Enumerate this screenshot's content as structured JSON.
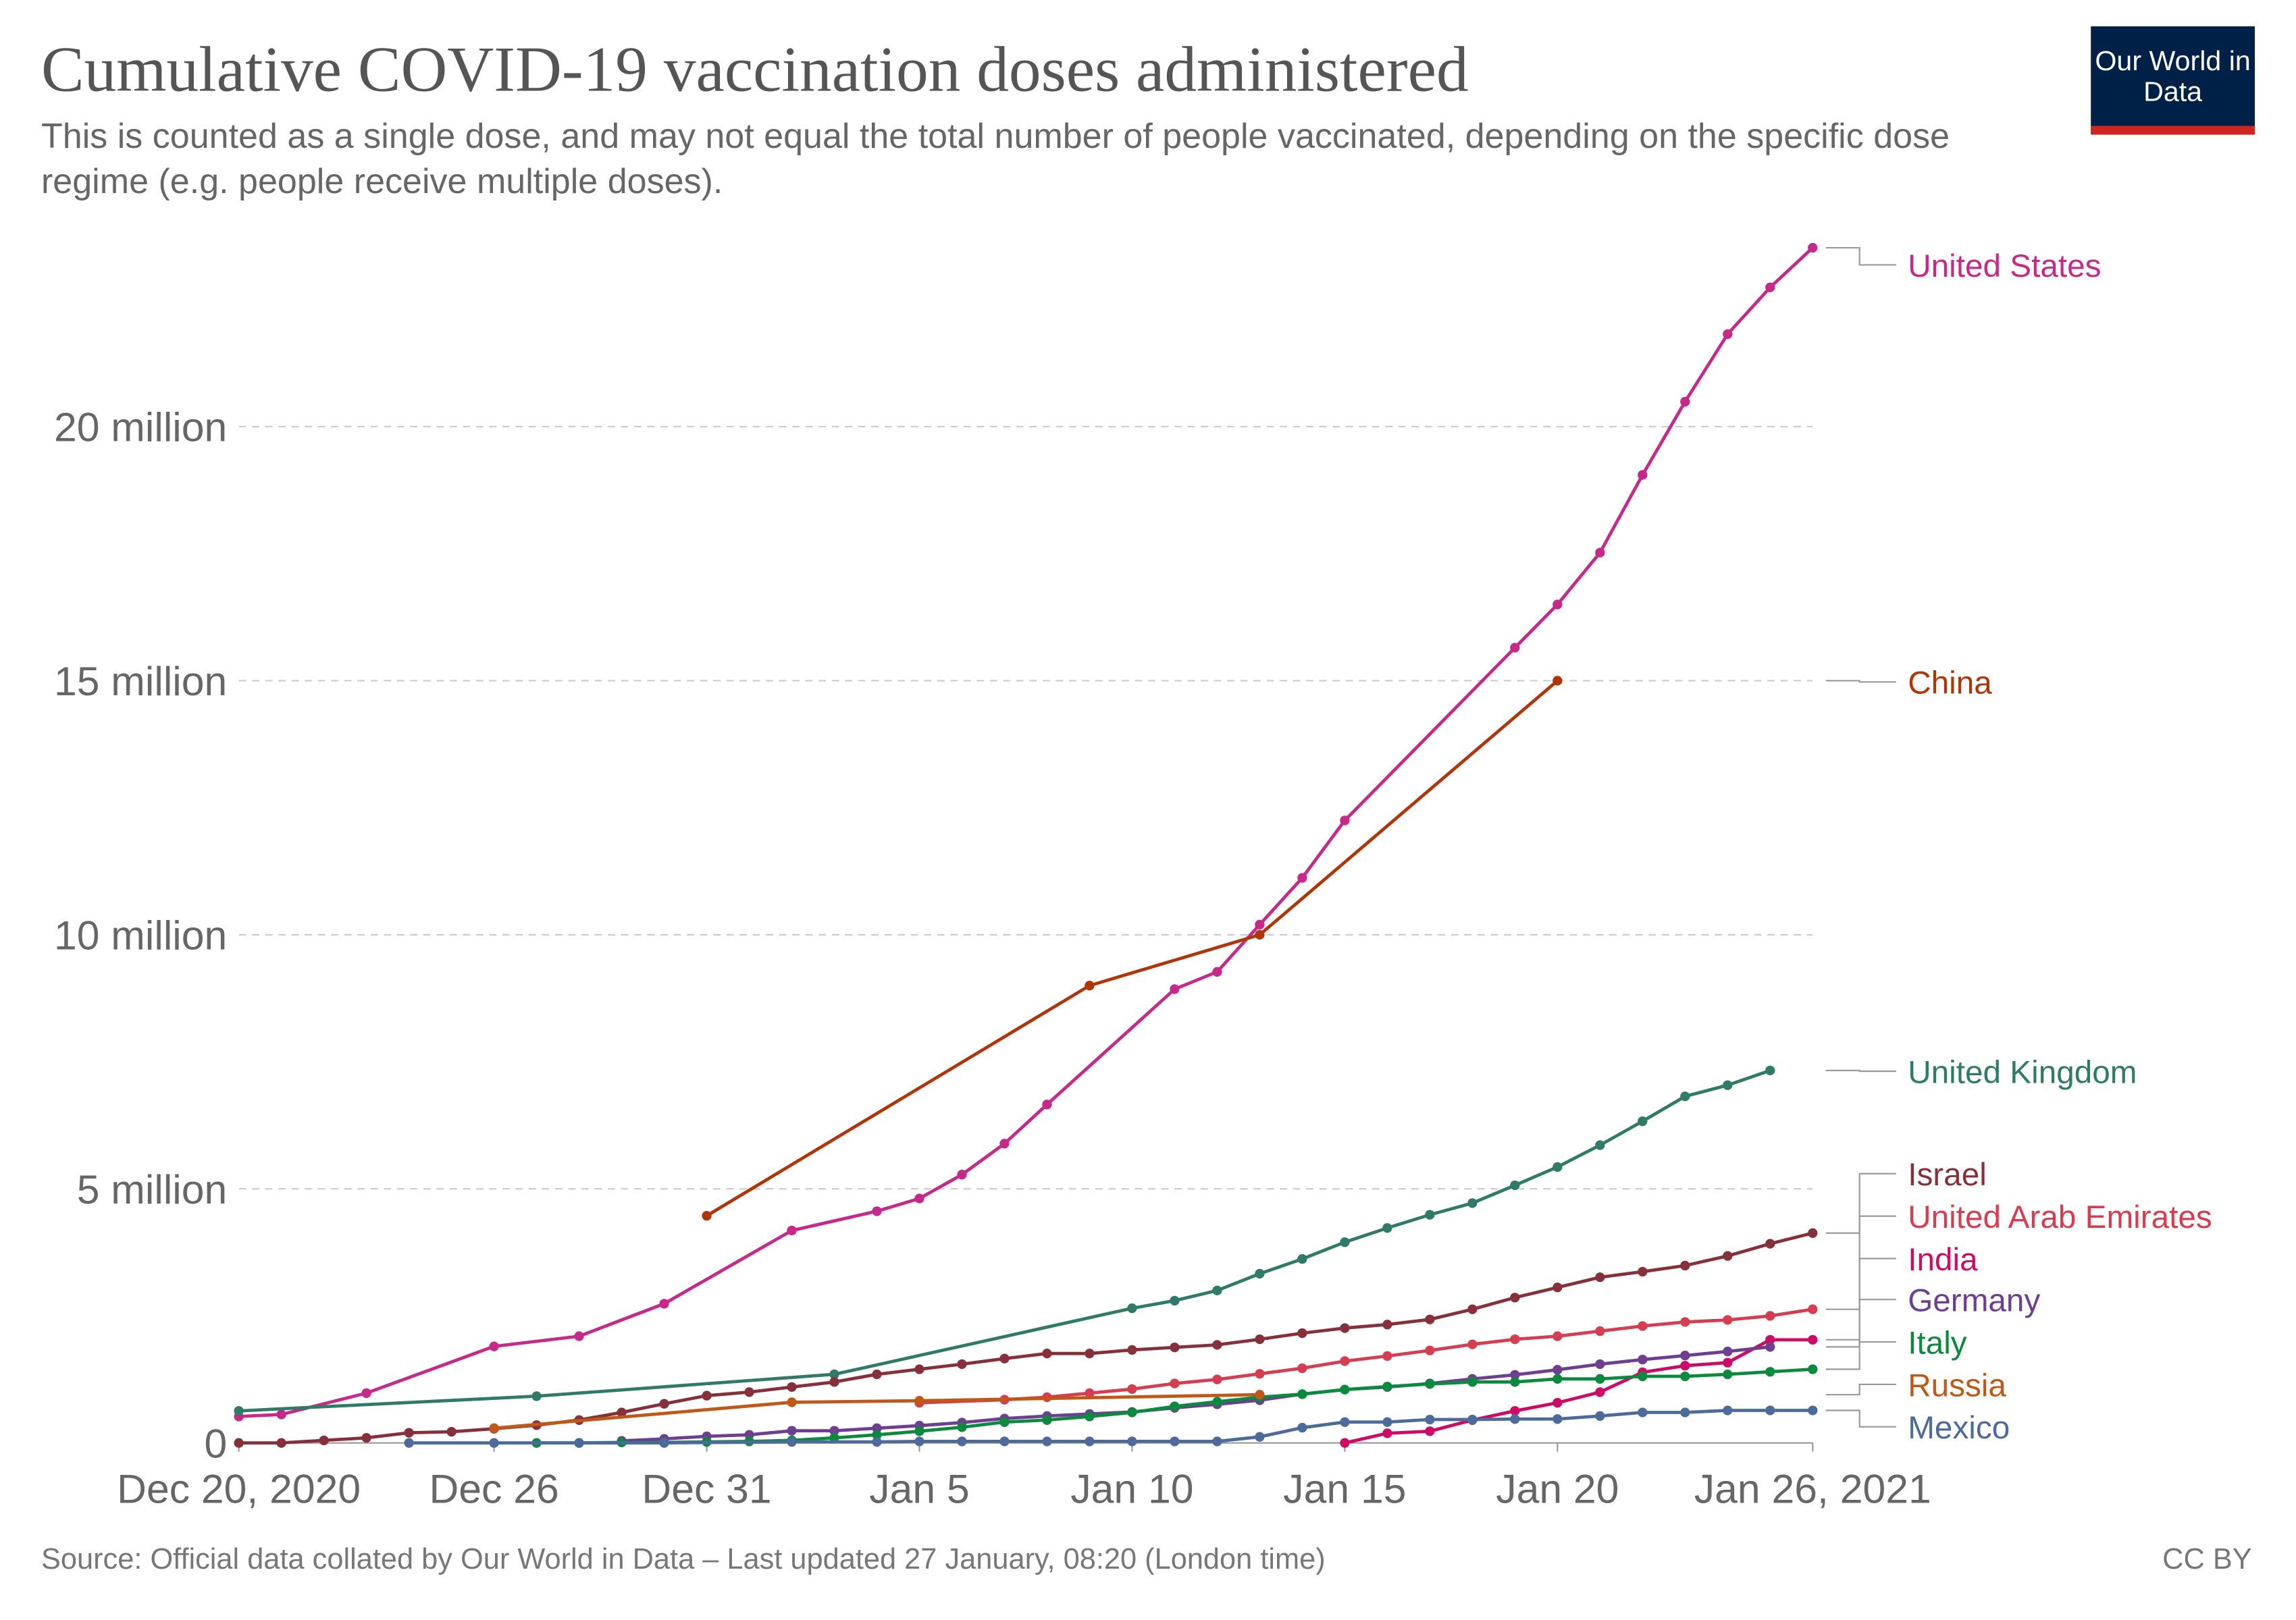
{
  "chart_data": {
    "type": "line",
    "title": "Cumulative COVID-19 vaccination doses administered",
    "subtitle": "This is counted as a single dose, and may not equal the total number of people vaccinated, depending on the specific dose regime (e.g. people receive multiple doses).",
    "logo": "Our World in Data",
    "source": "Source: Official data collated by Our World in Data – Last updated 27 January, 08:20 (London time)",
    "license": "CC BY",
    "xlim": [
      "2020-12-20",
      "2021-01-26"
    ],
    "xticks": [
      {
        "value": "2020-12-20",
        "label": "Dec 20, 2020"
      },
      {
        "value": "2020-12-26",
        "label": "Dec 26"
      },
      {
        "value": "2020-12-31",
        "label": "Dec 31"
      },
      {
        "value": "2021-01-05",
        "label": "Jan 5"
      },
      {
        "value": "2021-01-10",
        "label": "Jan 10"
      },
      {
        "value": "2021-01-15",
        "label": "Jan 15"
      },
      {
        "value": "2021-01-20",
        "label": "Jan 20"
      },
      {
        "value": "2021-01-26",
        "label": "Jan 26, 2021"
      }
    ],
    "ylim": [
      0,
      23500000
    ],
    "yticks": [
      0,
      {
        "value": 5000000,
        "label": "5 million"
      },
      {
        "value": 10000000,
        "label": "10 million"
      },
      {
        "value": 15000000,
        "label": "15 million"
      },
      {
        "value": 20000000,
        "label": "20 million"
      }
    ],
    "grid": true,
    "series": [
      {
        "name": "United States",
        "color": "#c7288a",
        "x": [
          "2020-12-20",
          "2020-12-21",
          "2020-12-23",
          "2020-12-26",
          "2020-12-28",
          "2020-12-30",
          "2021-01-02",
          "2021-01-04",
          "2021-01-05",
          "2021-01-06",
          "2021-01-07",
          "2021-01-08",
          "2021-01-11",
          "2021-01-12",
          "2021-01-13",
          "2021-01-14",
          "2021-01-15",
          "2021-01-19",
          "2021-01-20",
          "2021-01-21",
          "2021-01-22",
          "2021-01-23",
          "2021-01-24",
          "2021-01-25",
          "2021-01-26"
        ],
        "values": [
          520000,
          560000,
          980000,
          1900000,
          2100000,
          2740000,
          4180000,
          4560000,
          4810000,
          5280000,
          5890000,
          6660000,
          8930000,
          9270000,
          10200000,
          11120000,
          12250000,
          15650000,
          16500000,
          17520000,
          19050000,
          20490000,
          21820000,
          22740000,
          23520000
        ]
      },
      {
        "name": "China",
        "color": "#b13507",
        "x": [
          "2020-12-31",
          "2021-01-09",
          "2021-01-13",
          "2021-01-20"
        ],
        "values": [
          4470000,
          9000000,
          10000000,
          15000000
        ]
      },
      {
        "name": "United Kingdom",
        "color": "#2f7a68",
        "x": [
          "2020-12-20",
          "2020-12-27",
          "2021-01-03",
          "2021-01-10",
          "2021-01-11",
          "2021-01-12",
          "2021-01-13",
          "2021-01-14",
          "2021-01-15",
          "2021-01-16",
          "2021-01-17",
          "2021-01-18",
          "2021-01-19",
          "2021-01-20",
          "2021-01-21",
          "2021-01-22",
          "2021-01-23",
          "2021-01-24",
          "2021-01-25"
        ],
        "values": [
          630000,
          920000,
          1350000,
          2650000,
          2800000,
          3000000,
          3330000,
          3620000,
          3950000,
          4230000,
          4490000,
          4720000,
          5070000,
          5430000,
          5860000,
          6330000,
          6820000,
          7040000,
          7330000
        ]
      },
      {
        "name": "Israel",
        "color": "#883039",
        "x": [
          "2020-12-20",
          "2020-12-21",
          "2020-12-22",
          "2020-12-23",
          "2020-12-24",
          "2020-12-25",
          "2020-12-26",
          "2020-12-27",
          "2020-12-28",
          "2020-12-29",
          "2020-12-30",
          "2020-12-31",
          "2021-01-01",
          "2021-01-02",
          "2021-01-03",
          "2021-01-04",
          "2021-01-05",
          "2021-01-06",
          "2021-01-07",
          "2021-01-08",
          "2021-01-09",
          "2021-01-10",
          "2021-01-11",
          "2021-01-12",
          "2021-01-13",
          "2021-01-14",
          "2021-01-15",
          "2021-01-16",
          "2021-01-17",
          "2021-01-18",
          "2021-01-19",
          "2021-01-20",
          "2021-01-21",
          "2021-01-22",
          "2021-01-23",
          "2021-01-24",
          "2021-01-25",
          "2021-01-26"
        ],
        "values": [
          0,
          0,
          50000,
          100000,
          200000,
          220000,
          280000,
          350000,
          450000,
          600000,
          770000,
          930000,
          1000000,
          1100000,
          1200000,
          1350000,
          1450000,
          1550000,
          1660000,
          1760000,
          1760000,
          1830000,
          1880000,
          1930000,
          2040000,
          2160000,
          2260000,
          2330000,
          2430000,
          2630000,
          2860000,
          3060000,
          3260000,
          3370000,
          3490000,
          3680000,
          3920000,
          4130000
        ]
      },
      {
        "name": "United Arab Emirates",
        "color": "#d73c50",
        "x": [
          "2021-01-05",
          "2021-01-07",
          "2021-01-08",
          "2021-01-09",
          "2021-01-10",
          "2021-01-11",
          "2021-01-12",
          "2021-01-13",
          "2021-01-14",
          "2021-01-15",
          "2021-01-16",
          "2021-01-17",
          "2021-01-18",
          "2021-01-19",
          "2021-01-20",
          "2021-01-21",
          "2021-01-22",
          "2021-01-23",
          "2021-01-24",
          "2021-01-25",
          "2021-01-26"
        ],
        "values": [
          790000,
          850000,
          900000,
          980000,
          1060000,
          1170000,
          1250000,
          1360000,
          1470000,
          1610000,
          1710000,
          1820000,
          1940000,
          2040000,
          2100000,
          2200000,
          2300000,
          2380000,
          2420000,
          2500000,
          2630000
        ]
      },
      {
        "name": "India",
        "color": "#cf0a66",
        "x": [
          "2021-01-15",
          "2021-01-16",
          "2021-01-17",
          "2021-01-18",
          "2021-01-19",
          "2021-01-20",
          "2021-01-21",
          "2021-01-22",
          "2021-01-23",
          "2021-01-24",
          "2021-01-25",
          "2021-01-26"
        ],
        "values": [
          0,
          190000,
          230000,
          450000,
          630000,
          790000,
          1000000,
          1390000,
          1520000,
          1580000,
          2030000,
          2030000
        ]
      },
      {
        "name": "Germany",
        "color": "#6d3e91",
        "x": [
          "2020-12-29",
          "2020-12-30",
          "2020-12-31",
          "2021-01-01",
          "2021-01-02",
          "2021-01-03",
          "2021-01-04",
          "2021-01-05",
          "2021-01-06",
          "2021-01-07",
          "2021-01-08",
          "2021-01-09",
          "2021-01-10",
          "2021-01-11",
          "2021-01-12",
          "2021-01-13",
          "2021-01-14",
          "2021-01-15",
          "2021-01-16",
          "2021-01-17",
          "2021-01-18",
          "2021-01-19",
          "2021-01-20",
          "2021-01-21",
          "2021-01-22",
          "2021-01-23",
          "2021-01-24",
          "2021-01-25"
        ],
        "values": [
          40000,
          80000,
          130000,
          160000,
          240000,
          240000,
          290000,
          340000,
          400000,
          480000,
          530000,
          570000,
          610000,
          690000,
          760000,
          840000,
          960000,
          1050000,
          1100000,
          1170000,
          1260000,
          1340000,
          1440000,
          1550000,
          1640000,
          1720000,
          1800000,
          1890000
        ]
      },
      {
        "name": "Italy",
        "color": "#0a8a3c",
        "x": [
          "2020-12-27",
          "2020-12-28",
          "2020-12-29",
          "2020-12-30",
          "2020-12-31",
          "2021-01-01",
          "2021-01-02",
          "2021-01-03",
          "2021-01-04",
          "2021-01-05",
          "2021-01-06",
          "2021-01-07",
          "2021-01-08",
          "2021-01-09",
          "2021-01-10",
          "2021-01-11",
          "2021-01-12",
          "2021-01-13",
          "2021-01-14",
          "2021-01-15",
          "2021-01-16",
          "2021-01-17",
          "2021-01-18",
          "2021-01-19",
          "2021-01-20",
          "2021-01-21",
          "2021-01-22",
          "2021-01-23",
          "2021-01-24",
          "2021-01-25",
          "2021-01-26"
        ],
        "values": [
          0,
          0,
          10000,
          10000,
          20000,
          30000,
          50000,
          100000,
          160000,
          230000,
          310000,
          410000,
          450000,
          520000,
          600000,
          720000,
          810000,
          900000,
          960000,
          1050000,
          1110000,
          1160000,
          1200000,
          1200000,
          1260000,
          1260000,
          1310000,
          1310000,
          1350000,
          1400000,
          1450000
        ]
      },
      {
        "name": "Russia",
        "color": "#c05917",
        "x": [
          "2020-12-26",
          "2021-01-02",
          "2021-01-05",
          "2021-01-13"
        ],
        "values": [
          290000,
          800000,
          830000,
          950000
        ]
      },
      {
        "name": "Mexico",
        "color": "#4c6a9c",
        "x": [
          "2020-12-24",
          "2020-12-26",
          "2020-12-28",
          "2020-12-30",
          "2021-01-02",
          "2021-01-04",
          "2021-01-05",
          "2021-01-06",
          "2021-01-07",
          "2021-01-08",
          "2021-01-09",
          "2021-01-10",
          "2021-01-11",
          "2021-01-12",
          "2021-01-13",
          "2021-01-14",
          "2021-01-15",
          "2021-01-16",
          "2021-01-17",
          "2021-01-18",
          "2021-01-19",
          "2021-01-20",
          "2021-01-21",
          "2021-01-22",
          "2021-01-23",
          "2021-01-24",
          "2021-01-25",
          "2021-01-26"
        ],
        "values": [
          0,
          0,
          0,
          0,
          20000,
          20000,
          30000,
          30000,
          30000,
          30000,
          30000,
          30000,
          30000,
          30000,
          120000,
          300000,
          410000,
          410000,
          460000,
          460000,
          470000,
          470000,
          530000,
          600000,
          600000,
          640000,
          640000,
          640000
        ]
      }
    ]
  }
}
